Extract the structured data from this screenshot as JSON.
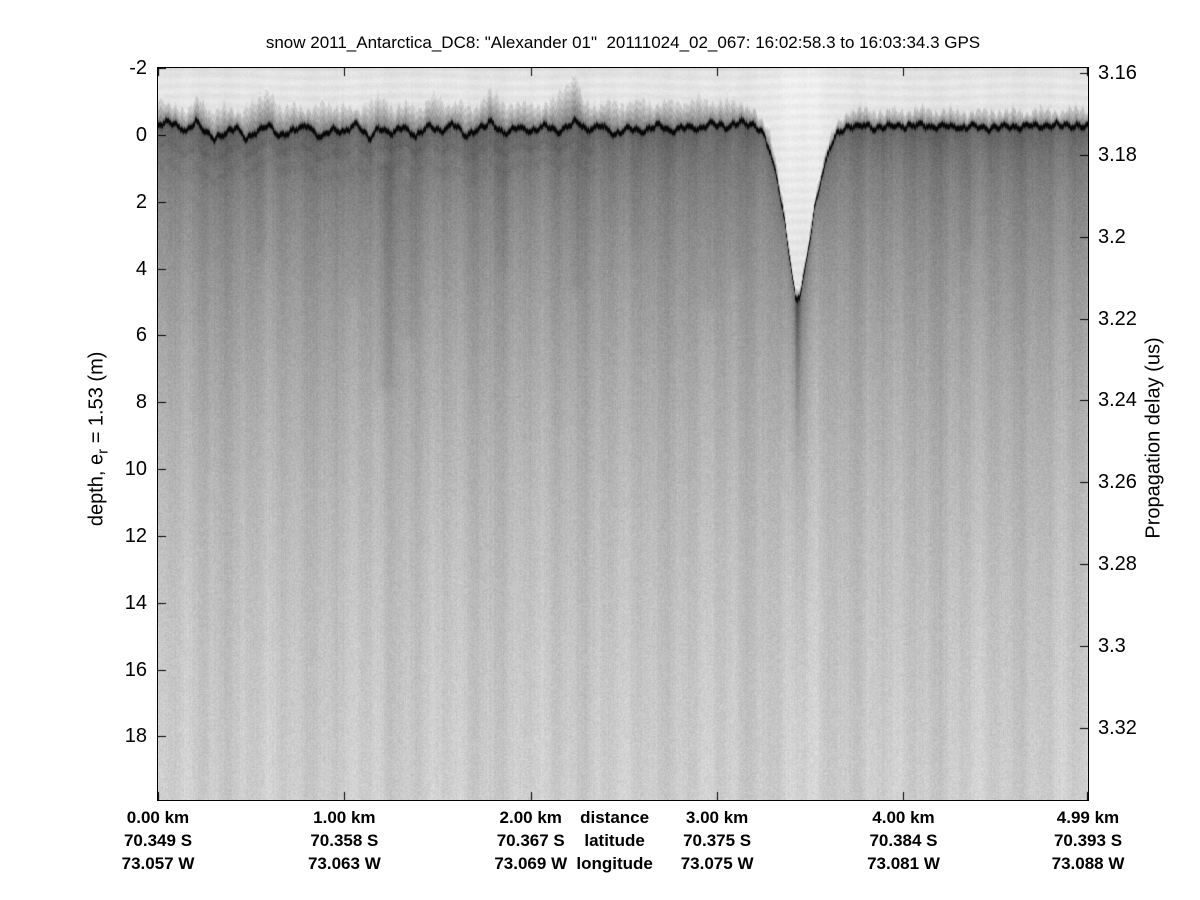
{
  "figure": {
    "background": "#ffffff",
    "foreground": "#000000"
  },
  "chart_data": {
    "type": "heatmap",
    "title": "snow 2011_Antarctica_DC8: \"Alexander 01\"  20111024_02_067: 16:02:58.3 to 16:03:34.3 GPS",
    "description": "Grayscale airborne snow-radar echogram; dark pixels = strong radar return. Undulating dark band is the snow surface; deep V-shaped trough (crevasse-like feature) near 3.4 km with bright vertical data column.",
    "colormap": "grayscale (dark = strong return)",
    "grid": false,
    "legend_position": "none",
    "x_axis": {
      "name": "distance",
      "range_km": [
        0,
        4.99
      ],
      "tick_km": [
        0,
        1,
        2,
        3,
        4,
        4.99
      ]
    },
    "left_axis": {
      "label": "depth, e_r = 1.53 (m)",
      "label_prefix": "depth, e",
      "label_sub": "r",
      "label_suffix": " = 1.53 (m)",
      "range_m": [
        -2,
        19.9
      ],
      "ticks": [
        "-2",
        "0",
        "2",
        "4",
        "6",
        "8",
        "10",
        "12",
        "14",
        "16",
        "18"
      ]
    },
    "right_axis": {
      "label": "Propagation delay (us)",
      "range_us": [
        3.1588,
        3.3376
      ],
      "ticks": [
        "3.16",
        "3.18",
        "3.2",
        "3.22",
        "3.24",
        "3.26",
        "3.28",
        "3.3",
        "3.32"
      ]
    },
    "bottom_labels": {
      "legend": [
        "distance",
        "latitude",
        "longitude"
      ],
      "legend_km": 2.45,
      "columns": [
        {
          "km": 0.0,
          "distance": "0.00 km",
          "latitude": "70.349 S",
          "longitude": "73.057 W"
        },
        {
          "km": 1.0,
          "distance": "1.00 km",
          "latitude": "70.358 S",
          "longitude": "73.063 W"
        },
        {
          "km": 2.0,
          "distance": "2.00 km",
          "latitude": "70.367 S",
          "longitude": "73.069 W"
        },
        {
          "km": 3.0,
          "distance": "3.00 km",
          "latitude": "70.375 S",
          "longitude": "73.075 W"
        },
        {
          "km": 4.0,
          "distance": "4.00 km",
          "latitude": "70.384 S",
          "longitude": "73.081 W"
        },
        {
          "km": 4.99,
          "distance": "4.99 km",
          "latitude": "70.393 S",
          "longitude": "73.088 W"
        }
      ]
    },
    "surface_profile_m": [
      [
        0.0,
        -0.32
      ],
      [
        0.06,
        -0.42
      ],
      [
        0.1,
        -0.28
      ],
      [
        0.15,
        -0.1
      ],
      [
        0.2,
        -0.45
      ],
      [
        0.24,
        -0.18
      ],
      [
        0.3,
        0.1
      ],
      [
        0.35,
        -0.05
      ],
      [
        0.42,
        -0.25
      ],
      [
        0.47,
        0.12
      ],
      [
        0.52,
        -0.08
      ],
      [
        0.59,
        -0.35
      ],
      [
        0.65,
        0.05
      ],
      [
        0.72,
        -0.15
      ],
      [
        0.8,
        -0.3
      ],
      [
        0.87,
        0.08
      ],
      [
        0.93,
        -0.2
      ],
      [
        1.0,
        -0.1
      ],
      [
        1.06,
        -0.35
      ],
      [
        1.13,
        0.1
      ],
      [
        1.18,
        -0.22
      ],
      [
        1.25,
        -0.05
      ],
      [
        1.31,
        -0.28
      ],
      [
        1.38,
        0.05
      ],
      [
        1.45,
        -0.3
      ],
      [
        1.52,
        -0.1
      ],
      [
        1.58,
        -0.38
      ],
      [
        1.65,
        0.02
      ],
      [
        1.72,
        -0.2
      ],
      [
        1.78,
        -0.42
      ],
      [
        1.85,
        -0.05
      ],
      [
        1.93,
        -0.25
      ],
      [
        2.0,
        -0.12
      ],
      [
        2.08,
        -0.32
      ],
      [
        2.15,
        -0.08
      ],
      [
        2.24,
        -0.45
      ],
      [
        2.3,
        -0.15
      ],
      [
        2.38,
        -0.3
      ],
      [
        2.45,
        -0.02
      ],
      [
        2.52,
        -0.25
      ],
      [
        2.6,
        -0.1
      ],
      [
        2.68,
        -0.35
      ],
      [
        2.75,
        -0.12
      ],
      [
        2.83,
        -0.28
      ],
      [
        2.9,
        -0.18
      ],
      [
        2.97,
        -0.38
      ],
      [
        3.05,
        -0.22
      ],
      [
        3.12,
        -0.42
      ],
      [
        3.2,
        -0.28
      ],
      [
        3.24,
        -0.1
      ],
      [
        3.28,
        0.45
      ],
      [
        3.32,
        1.3
      ],
      [
        3.36,
        2.6
      ],
      [
        3.4,
        4.2
      ],
      [
        3.42,
        4.95
      ],
      [
        3.44,
        4.8
      ],
      [
        3.46,
        4.3
      ],
      [
        3.49,
        3.3
      ],
      [
        3.52,
        2.2
      ],
      [
        3.56,
        1.2
      ],
      [
        3.6,
        0.4
      ],
      [
        3.64,
        -0.05
      ],
      [
        3.7,
        -0.25
      ],
      [
        3.78,
        -0.32
      ],
      [
        3.85,
        -0.2
      ],
      [
        3.92,
        -0.3
      ],
      [
        4.0,
        -0.25
      ],
      [
        4.08,
        -0.35
      ],
      [
        4.15,
        -0.22
      ],
      [
        4.23,
        -0.32
      ],
      [
        4.3,
        -0.2
      ],
      [
        4.38,
        -0.3
      ],
      [
        4.45,
        -0.18
      ],
      [
        4.53,
        -0.3
      ],
      [
        4.6,
        -0.22
      ],
      [
        4.68,
        -0.32
      ],
      [
        4.75,
        -0.25
      ],
      [
        4.82,
        -0.35
      ],
      [
        4.9,
        -0.28
      ],
      [
        4.99,
        -0.3
      ]
    ],
    "scatter_top_profile_m": [
      [
        0.0,
        -1.15
      ],
      [
        0.08,
        -0.95
      ],
      [
        0.15,
        -0.8
      ],
      [
        0.21,
        -1.25
      ],
      [
        0.28,
        -0.75
      ],
      [
        0.35,
        -0.95
      ],
      [
        0.42,
        -0.7
      ],
      [
        0.5,
        -1.05
      ],
      [
        0.59,
        -1.4
      ],
      [
        0.66,
        -0.85
      ],
      [
        0.73,
        -1.0
      ],
      [
        0.8,
        -0.75
      ],
      [
        0.88,
        -1.1
      ],
      [
        0.95,
        -0.85
      ],
      [
        1.0,
        -1.0
      ],
      [
        1.08,
        -0.8
      ],
      [
        1.18,
        -1.3
      ],
      [
        1.26,
        -0.85
      ],
      [
        1.34,
        -1.05
      ],
      [
        1.4,
        -0.8
      ],
      [
        1.48,
        -1.35
      ],
      [
        1.55,
        -0.9
      ],
      [
        1.62,
        -1.1
      ],
      [
        1.7,
        -0.85
      ],
      [
        1.78,
        -1.45
      ],
      [
        1.86,
        -0.95
      ],
      [
        1.95,
        -1.1
      ],
      [
        2.05,
        -0.9
      ],
      [
        2.13,
        -1.2
      ],
      [
        2.24,
        -1.9
      ],
      [
        2.28,
        -1.1
      ],
      [
        2.35,
        -0.9
      ],
      [
        2.42,
        -1.15
      ],
      [
        2.5,
        -0.95
      ],
      [
        2.58,
        -1.2
      ],
      [
        2.66,
        -0.9
      ],
      [
        2.74,
        -1.15
      ],
      [
        2.82,
        -0.95
      ],
      [
        2.9,
        -1.25
      ],
      [
        2.98,
        -1.0
      ],
      [
        3.06,
        -1.15
      ],
      [
        3.14,
        -0.95
      ],
      [
        3.2,
        -0.8
      ],
      [
        3.28,
        -0.2
      ],
      [
        3.32,
        0.9
      ],
      [
        3.36,
        2.25
      ],
      [
        3.4,
        3.9
      ],
      [
        3.42,
        4.65
      ],
      [
        3.44,
        4.5
      ],
      [
        3.46,
        3.95
      ],
      [
        3.49,
        2.95
      ],
      [
        3.52,
        1.85
      ],
      [
        3.56,
        0.85
      ],
      [
        3.6,
        0.05
      ],
      [
        3.64,
        -0.45
      ],
      [
        3.7,
        -0.75
      ],
      [
        3.78,
        -0.95
      ],
      [
        3.86,
        -0.7
      ],
      [
        3.94,
        -0.9
      ],
      [
        4.02,
        -0.7
      ],
      [
        4.1,
        -0.95
      ],
      [
        4.18,
        -0.7
      ],
      [
        4.26,
        -0.9
      ],
      [
        4.34,
        -0.68
      ],
      [
        4.42,
        -0.92
      ],
      [
        4.5,
        -0.7
      ],
      [
        4.58,
        -0.88
      ],
      [
        4.66,
        -0.68
      ],
      [
        4.74,
        -0.9
      ],
      [
        4.82,
        -0.7
      ],
      [
        4.9,
        -0.92
      ],
      [
        4.99,
        -0.8
      ]
    ],
    "features": {
      "trough": {
        "center_km": 3.42,
        "bottom_depth_m": 4.95,
        "tail_depth_m": 9.9
      },
      "bright_column": {
        "center_km": 3.45,
        "top_halfwidth_km": 0.2
      },
      "surface_spike": {
        "km": 2.24,
        "top_m": -1.9
      },
      "dark_streaks": [
        [
          0.55,
          0.8,
          3.5,
          7,
          6,
          0
        ],
        [
          1.05,
          0.8,
          4.5,
          8,
          7,
          0
        ],
        [
          1.22,
          1.0,
          7.5,
          12,
          9,
          0
        ],
        [
          1.35,
          1.5,
          6.0,
          9,
          7,
          0
        ],
        [
          1.85,
          1.0,
          4.0,
          6,
          6,
          0
        ],
        [
          2.24,
          0.5,
          4.5,
          9,
          6,
          0
        ],
        [
          2.55,
          0.8,
          3.2,
          6,
          5,
          0
        ],
        [
          2.95,
          0.6,
          5.0,
          8,
          8,
          0
        ],
        [
          3.1,
          0.8,
          4.0,
          7,
          6,
          0
        ],
        [
          3.43,
          5.0,
          9.9,
          44,
          3,
          1
        ],
        [
          4.35,
          0.8,
          3.2,
          5,
          6,
          0
        ]
      ]
    }
  }
}
